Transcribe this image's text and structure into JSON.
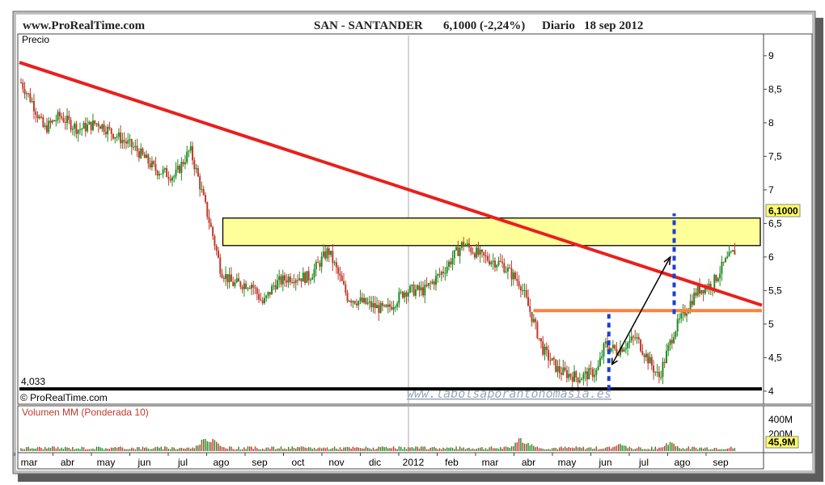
{
  "header": {
    "site": "www.ProRealTime.com",
    "instrument": "SAN - SANTANDER",
    "price_change": "6,1000 (-2,24%)",
    "period": "Diario",
    "date": "18 sep 2012"
  },
  "price_panel": {
    "label": "Precio",
    "copyright": "© ProRealTime.com",
    "watermark": "www.labolsaporantonomasia.es",
    "last_price_badge": "6,1000",
    "support_label": "4,033"
  },
  "volume_panel": {
    "label": "Volumen MM (Ponderada 10)",
    "ticks": [
      "400M",
      "200M"
    ],
    "last_value_badge": "45,9M"
  },
  "colors": {
    "up_candle": "#1e8c1e",
    "down_candle": "#c0392b",
    "trendline": "#e8201e",
    "resistance_zone": "#ffff99",
    "horizontal_line": "#ff8040",
    "support_line": "#000000",
    "dotted_markers": "#1a3fd6"
  },
  "chart_data": {
    "type": "line",
    "title": "SAN - SANTANDER",
    "y_axis": {
      "ticks": [
        "9",
        "8,5",
        "8",
        "7,5",
        "7",
        "6,5",
        "6",
        "5,5",
        "5",
        "4,5",
        "4"
      ],
      "tick_values": [
        9,
        8.5,
        8,
        7.5,
        7,
        6.5,
        6,
        5.5,
        5,
        4.5,
        4
      ],
      "range": [
        3.83,
        9.3
      ]
    },
    "x_axis": {
      "labels": [
        "mar",
        "abr",
        "may",
        "jun",
        "jul",
        "ago",
        "sep",
        "oct",
        "nov",
        "dic",
        "2012",
        "feb",
        "mar",
        "abr",
        "may",
        "jun",
        "jul",
        "ago",
        "sep"
      ],
      "month_index": [
        0,
        1,
        2,
        3,
        4,
        5,
        6,
        7,
        8,
        9,
        10,
        11,
        12,
        13,
        14,
        15,
        16,
        17,
        18
      ]
    },
    "series": [
      {
        "type": "price",
        "x": [
          0,
          0.3,
          0.6,
          1,
          1.5,
          2,
          2.5,
          3,
          3.5,
          4,
          4.4,
          4.6,
          5,
          5.2,
          5.5,
          6,
          6.3,
          6.6,
          7,
          7.5,
          8,
          8.5,
          9,
          9.5,
          10,
          10.5,
          11,
          11.5,
          12,
          12.5,
          13,
          13.3,
          13.6,
          14,
          14.5,
          15,
          15.2,
          15.5,
          16,
          16.3,
          16.6,
          17,
          17.3,
          17.6,
          18,
          18.3,
          18.6
        ],
        "y": [
          8.6,
          8.3,
          7.9,
          8.1,
          7.9,
          8.0,
          7.8,
          7.6,
          7.3,
          7.2,
          7.6,
          7.2,
          6.3,
          5.8,
          5.6,
          5.6,
          5.3,
          5.6,
          5.7,
          5.7,
          6.1,
          5.4,
          5.3,
          5.2,
          5.5,
          5.5,
          5.8,
          6.2,
          6.0,
          5.9,
          5.6,
          5.1,
          4.6,
          4.3,
          4.2,
          4.3,
          4.7,
          4.6,
          4.8,
          4.5,
          4.2,
          4.9,
          5.2,
          5.5,
          5.6,
          5.9,
          6.1
        ]
      }
    ],
    "annotations": {
      "trendline": {
        "from": [
          0,
          8.9
        ],
        "to": [
          19,
          5.28
        ]
      },
      "resistance_zone": {
        "x": [
          5,
          19
        ],
        "y": [
          6.17,
          6.58
        ]
      },
      "horizontal_line": {
        "x": [
          13,
          19
        ],
        "y": 5.2
      },
      "support_line": {
        "y": 4.033
      },
      "dotted_markers": [
        {
          "x": 15.3,
          "y_from": 4.02,
          "y_to": 5.15
        },
        {
          "x": 17.0,
          "y_from": 5.15,
          "y_to": 6.65
        }
      ],
      "arrow": {
        "from": [
          15.3,
          4.4
        ],
        "to": [
          16.9,
          6.0
        ]
      }
    },
    "volume": {
      "ticks": [
        400,
        200
      ],
      "last": 45.9,
      "spikes": [
        {
          "x": 4.8,
          "v": 250
        },
        {
          "x": 5.0,
          "v": 190
        },
        {
          "x": 13.0,
          "v": 200
        },
        {
          "x": 13.2,
          "v": 140
        },
        {
          "x": 16.9,
          "v": 160
        },
        {
          "x": 15.6,
          "v": 130
        }
      ]
    }
  }
}
